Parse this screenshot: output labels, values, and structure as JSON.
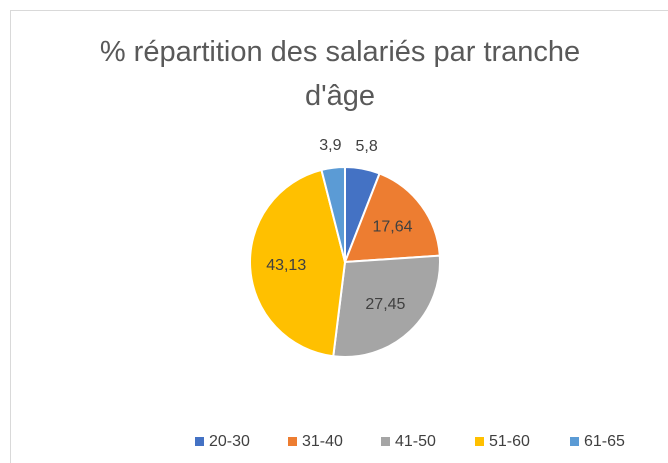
{
  "chart_data": {
    "type": "pie",
    "title": "% répartition des salariés par tranche d'âge",
    "categories": [
      "20-30",
      "31-40",
      "41-50",
      "51-60",
      "61-65"
    ],
    "values": [
      5.8,
      17.64,
      27.45,
      43.13,
      3.9
    ],
    "value_labels": [
      "5,8",
      "17,64",
      "27,45",
      "43,13",
      "3,9"
    ],
    "colors": [
      "#4472c4",
      "#ed7d31",
      "#a5a5a5",
      "#ffc000",
      "#5b9bd5"
    ],
    "legend": "bottom"
  }
}
